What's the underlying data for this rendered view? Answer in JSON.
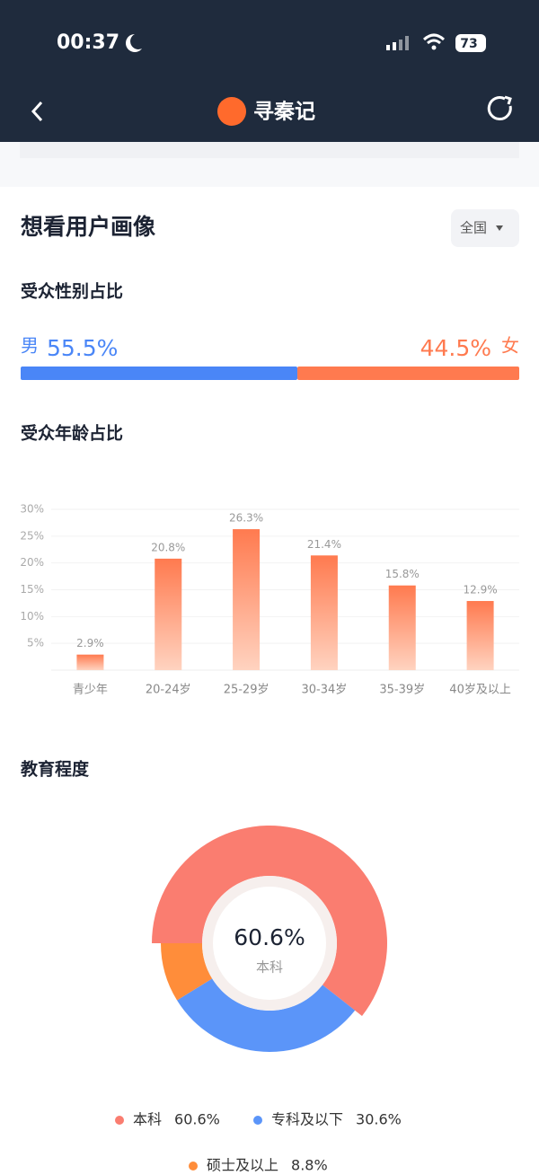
{
  "status_bar": {
    "time": "00:37",
    "battery": "73"
  },
  "nav": {
    "title": "寻秦记"
  },
  "section": {
    "title": "想看用户画像",
    "region": "全国"
  },
  "gender": {
    "title": "受众性别占比",
    "series": [
      {
        "name": "男",
        "color": "#4a86f7",
        "value": 55.5,
        "value_label": "55.5%"
      },
      {
        "name": "女",
        "color": "#ff7a4f",
        "value": 44.5,
        "value_label": "44.5%"
      }
    ]
  },
  "age": {
    "type": "bar",
    "title": "受众年龄占比",
    "categories": [
      "青少年",
      "20-24岁",
      "25-29岁",
      "30-34岁",
      "35-39岁",
      "40岁及以上"
    ],
    "values": [
      2.9,
      20.8,
      26.3,
      21.4,
      15.8,
      12.9
    ],
    "value_labels": [
      "2.9%",
      "20.8%",
      "26.3%",
      "21.4%",
      "15.8%",
      "12.9%"
    ],
    "color": "#ff7a4f",
    "ylim": [
      0,
      30
    ],
    "yticks": [
      {
        "value": 5,
        "label": "5%"
      },
      {
        "value": 10,
        "label": "10%"
      },
      {
        "value": 15,
        "label": "15%"
      },
      {
        "value": 20,
        "label": "20%"
      },
      {
        "value": 25,
        "label": "25%"
      },
      {
        "value": 30,
        "label": "30%"
      }
    ],
    "grid": true
  },
  "education": {
    "type": "pie",
    "title": "教育程度",
    "categories": [
      "本科",
      "专科及以下",
      "硕士及以上"
    ],
    "values": [
      60.6,
      30.6,
      8.8
    ],
    "value_labels": [
      "60.6%",
      "30.6%",
      "8.8%"
    ],
    "colors": [
      "#fa7d70",
      "#5b95f9",
      "#ff8d3a"
    ]
  }
}
